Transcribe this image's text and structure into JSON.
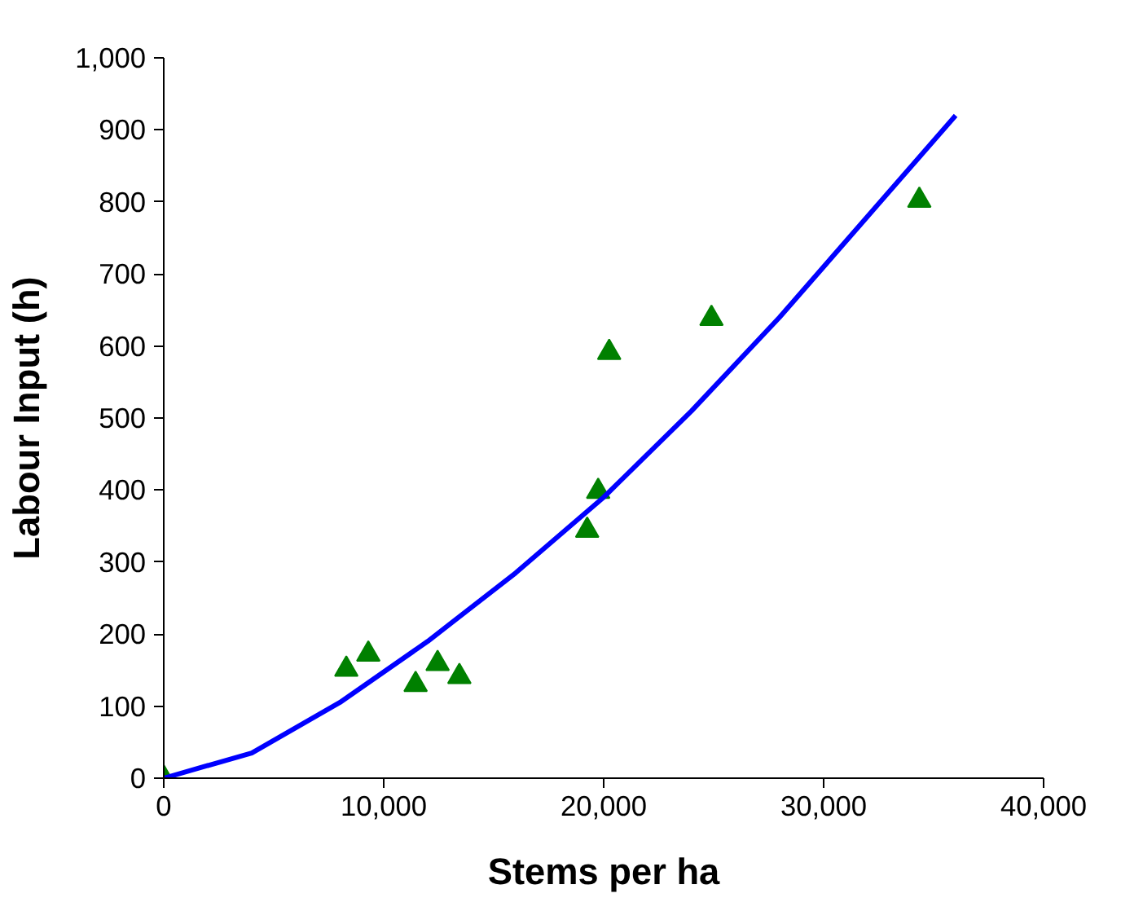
{
  "chart_data": {
    "type": "scatter",
    "xlabel": "Stems per ha",
    "ylabel": "Labour Input (h)",
    "xlim": [
      0,
      40000
    ],
    "ylim": [
      0,
      1000
    ],
    "xticks": [
      0,
      {
        "value": 10000,
        "label": "10,000"
      },
      {
        "value": 20000,
        "label": "20,000"
      },
      {
        "value": 30000,
        "label": "30,000"
      },
      {
        "value": 40000,
        "label": "40,000"
      }
    ],
    "yticks": [
      0,
      100,
      200,
      300,
      400,
      500,
      600,
      700,
      800,
      900,
      {
        "value": 1000,
        "label": "1,000"
      }
    ],
    "grid": false,
    "series": [
      {
        "marker": "triangle",
        "color": "#008000",
        "x": [
          0,
          8300,
          9300,
          11450,
          12450,
          13440,
          19250,
          19750,
          20250,
          24900,
          34350
        ],
        "values": [
          0,
          151,
          172,
          130,
          159,
          141,
          344,
          398,
          591,
          638,
          802
        ]
      },
      {
        "type": "line",
        "marker": "none",
        "line_style": "solid",
        "color": "#0000ff",
        "x": [
          0,
          4000,
          8000,
          12000,
          16000,
          20000,
          24000,
          28000,
          32000,
          36000
        ],
        "values": [
          0,
          35,
          105,
          190,
          285,
          390,
          510,
          640,
          780,
          920
        ]
      }
    ]
  }
}
